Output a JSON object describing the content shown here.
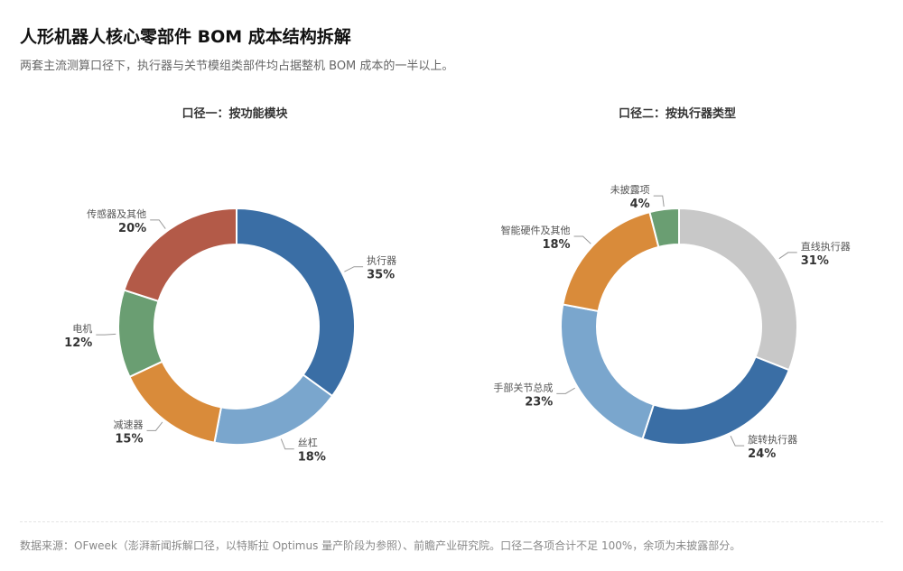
{
  "header": {
    "title": "人形机器人核心零部件 BOM 成本结构拆解",
    "subtitle": "两套主流测算口径下，执行器与关节模组类部件均占据整机 BOM 成本的一半以上。"
  },
  "footer": {
    "source": "数据来源：OFweek（澎湃新闻拆解口径，以特斯拉 Optimus 量产阶段为参照）、前瞻产业研究院。口径二各项合计不足 100%，余项为未披露部分。"
  },
  "chart_data": [
    {
      "type": "pie",
      "donut": true,
      "title": "口径一：按功能模块",
      "labels": [
        "执行器",
        "丝杠",
        "减速器",
        "电机",
        "传感器及其他"
      ],
      "values": [
        35,
        18,
        15,
        12,
        20
      ],
      "value_labels": [
        "35%",
        "18%",
        "15%",
        "12%",
        "20%"
      ],
      "colors": [
        "#3a6ea5",
        "#7aa6cd",
        "#d98b3a",
        "#6a9e72",
        "#b35a48"
      ]
    },
    {
      "type": "pie",
      "donut": true,
      "title": "口径二：按执行器类型",
      "labels": [
        "直线执行器",
        "旋转执行器",
        "手部关节总成",
        "智能硬件及其他",
        "未披露项"
      ],
      "values": [
        31,
        24,
        23,
        18,
        4
      ],
      "value_labels": [
        "31%",
        "24%",
        "23%",
        "18%",
        "4%"
      ],
      "colors": [
        "#c8c8c8",
        "#3a6ea5",
        "#7aa6cd",
        "#d98b3a",
        "#6a9e72"
      ]
    }
  ]
}
